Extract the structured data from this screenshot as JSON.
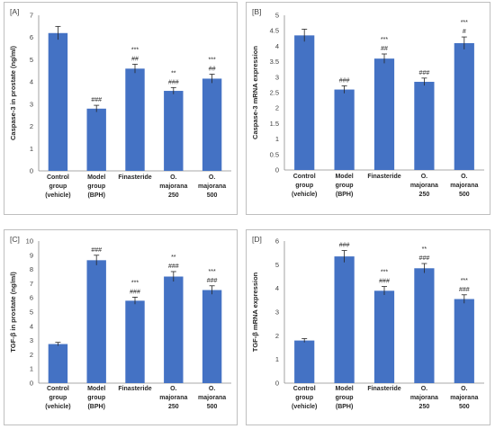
{
  "chart_data": [
    {
      "type": "bar",
      "panel_label": "[A]",
      "ylabel": "Caspase-3 in prostate (ng/ml)",
      "ylim": [
        0,
        7
      ],
      "yticks": [
        "0",
        "1",
        "2",
        "3",
        "4",
        "5",
        "6",
        "7"
      ],
      "categories": [
        [
          "Control",
          "group",
          "(vehicle)"
        ],
        [
          "Model",
          "group",
          "(BPH)"
        ],
        [
          "Finasteride"
        ],
        [
          "O.",
          "majorana",
          "250"
        ],
        [
          "O.",
          "majorana",
          "500"
        ]
      ],
      "values": [
        6.2,
        2.8,
        4.6,
        3.6,
        4.15
      ],
      "errors": [
        0.3,
        0.15,
        0.2,
        0.15,
        0.2
      ],
      "annotations": [
        [],
        [
          "###"
        ],
        [
          "***",
          "##"
        ],
        [
          "**",
          "###"
        ],
        [
          "***",
          "##"
        ]
      ],
      "grid": false,
      "bar_color": "#4472c4"
    },
    {
      "type": "bar",
      "panel_label": "[B]",
      "ylabel": "Caspase-3 mRNA expression",
      "ylim": [
        0,
        5
      ],
      "yticks": [
        "0",
        "0.5",
        "1",
        "1.5",
        "2",
        "2.5",
        "3",
        "3.5",
        "4",
        "4.5",
        "5"
      ],
      "categories": [
        [
          "Control",
          "group",
          "(vehicle)"
        ],
        [
          "Model",
          "group",
          "(BPH)"
        ],
        [
          "Finasteride"
        ],
        [
          "O.",
          "majorana",
          "250"
        ],
        [
          "O.",
          "majorana",
          "500"
        ]
      ],
      "values": [
        4.35,
        2.6,
        3.6,
        2.85,
        4.1
      ],
      "errors": [
        0.2,
        0.12,
        0.15,
        0.12,
        0.2
      ],
      "annotations": [
        [],
        [
          "###"
        ],
        [
          "***",
          "##"
        ],
        [
          "###"
        ],
        [
          "***",
          "#"
        ]
      ],
      "grid": false,
      "bar_color": "#4472c4"
    },
    {
      "type": "bar",
      "panel_label": "[C]",
      "ylabel": "TGF-β in prostate (ng/ml)",
      "ylim": [
        0,
        10
      ],
      "yticks": [
        "0",
        "1",
        "2",
        "3",
        "4",
        "5",
        "6",
        "7",
        "8",
        "9",
        "10"
      ],
      "categories": [
        [
          "Control",
          "group",
          "(vehicle)"
        ],
        [
          "Model",
          "group",
          "(BPH)"
        ],
        [
          "Finasteride"
        ],
        [
          "O.",
          "majorana",
          "250"
        ],
        [
          "O.",
          "majorana",
          "500"
        ]
      ],
      "values": [
        2.75,
        8.65,
        5.8,
        7.5,
        6.55
      ],
      "errors": [
        0.12,
        0.35,
        0.25,
        0.35,
        0.3
      ],
      "annotations": [
        [],
        [
          "###"
        ],
        [
          "***",
          "###"
        ],
        [
          "**",
          "###"
        ],
        [
          "***",
          "###"
        ]
      ],
      "grid": false,
      "bar_color": "#4472c4"
    },
    {
      "type": "bar",
      "panel_label": "[D]",
      "ylabel": "TGF-β mRNA expression",
      "ylim": [
        0,
        6
      ],
      "yticks": [
        "0",
        "1",
        "2",
        "3",
        "4",
        "5",
        "6"
      ],
      "categories": [
        [
          "Control",
          "group",
          "(vehicle)"
        ],
        [
          "Model",
          "group",
          "(BPH)"
        ],
        [
          "Finasteride"
        ],
        [
          "O.",
          "majorana",
          "250"
        ],
        [
          "O.",
          "majorana",
          "500"
        ]
      ],
      "values": [
        1.8,
        5.35,
        3.9,
        4.85,
        3.55
      ],
      "errors": [
        0.08,
        0.25,
        0.18,
        0.2,
        0.18
      ],
      "annotations": [
        [],
        [
          "###"
        ],
        [
          "***",
          "###"
        ],
        [
          "**",
          "###"
        ],
        [
          "***",
          "###"
        ]
      ],
      "grid": false,
      "bar_color": "#4472c4"
    }
  ]
}
